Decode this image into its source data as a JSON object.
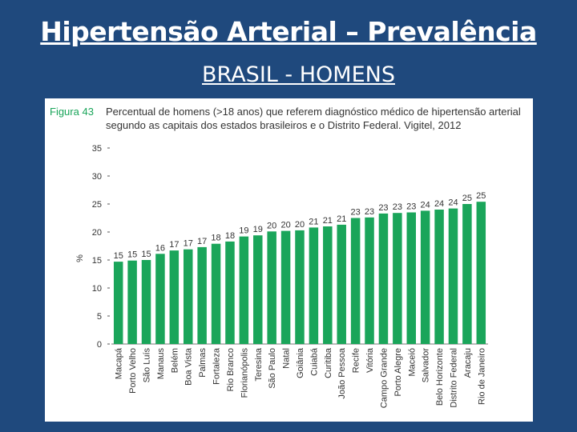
{
  "slide": {
    "title": "Hipertensão Arterial – Prevalência",
    "subtitle": "BRASIL - HOMENS"
  },
  "figure": {
    "label": "Figura 43",
    "caption": "Percentual de homens (>18 anos) que referem diagnóstico médico de hipertensão arterial segundo as capitais dos estados brasileiros e o Distrito Federal. Vigitel, 2012"
  },
  "colors": {
    "background": "#1f497d",
    "bar": "#1aa55a",
    "text": "#333333"
  },
  "chart_data": {
    "type": "bar",
    "title": "Percentual de homens (>18 anos) que referem diagnóstico médico de hipertensão arterial segundo as capitais dos estados brasileiros e o Distrito Federal. Vigitel, 2012",
    "xlabel": "",
    "ylabel": "%",
    "ylim": [
      0,
      35
    ],
    "yticks": [
      0,
      5,
      10,
      15,
      20,
      25,
      30,
      35
    ],
    "grid": false,
    "categories": [
      "Macapá",
      "Porto Velho",
      "São Luís",
      "Manaus",
      "Belém",
      "Boa Vista",
      "Palmas",
      "Fortaleza",
      "Rio Branco",
      "Florianópolis",
      "Teresina",
      "São Paulo",
      "Natal",
      "Goiânia",
      "Cuiabá",
      "Curitiba",
      "João Pessoa",
      "Recife",
      "Vitória",
      "Campo Grande",
      "Porto Alegre",
      "Maceió",
      "Salvador",
      "Belo Horizonte",
      "Distrito Federal",
      "Aracaju",
      "Rio de Janeiro"
    ],
    "values": [
      14.7,
      14.9,
      15.0,
      16.1,
      16.7,
      16.9,
      17.3,
      17.9,
      18.3,
      19.2,
      19.4,
      20.1,
      20.2,
      20.3,
      20.8,
      21.0,
      21.3,
      22.5,
      22.6,
      23.3,
      23.4,
      23.5,
      23.8,
      24.0,
      24.2,
      25.0,
      25.4
    ],
    "labels": [
      "15",
      "15",
      "15",
      "16",
      "17",
      "17",
      "17",
      "18",
      "18",
      "19",
      "19",
      "20",
      "20",
      "20",
      "21",
      "21",
      "21",
      "23",
      "23",
      "23",
      "23",
      "23",
      "24",
      "24",
      "24",
      "25",
      "25"
    ]
  }
}
